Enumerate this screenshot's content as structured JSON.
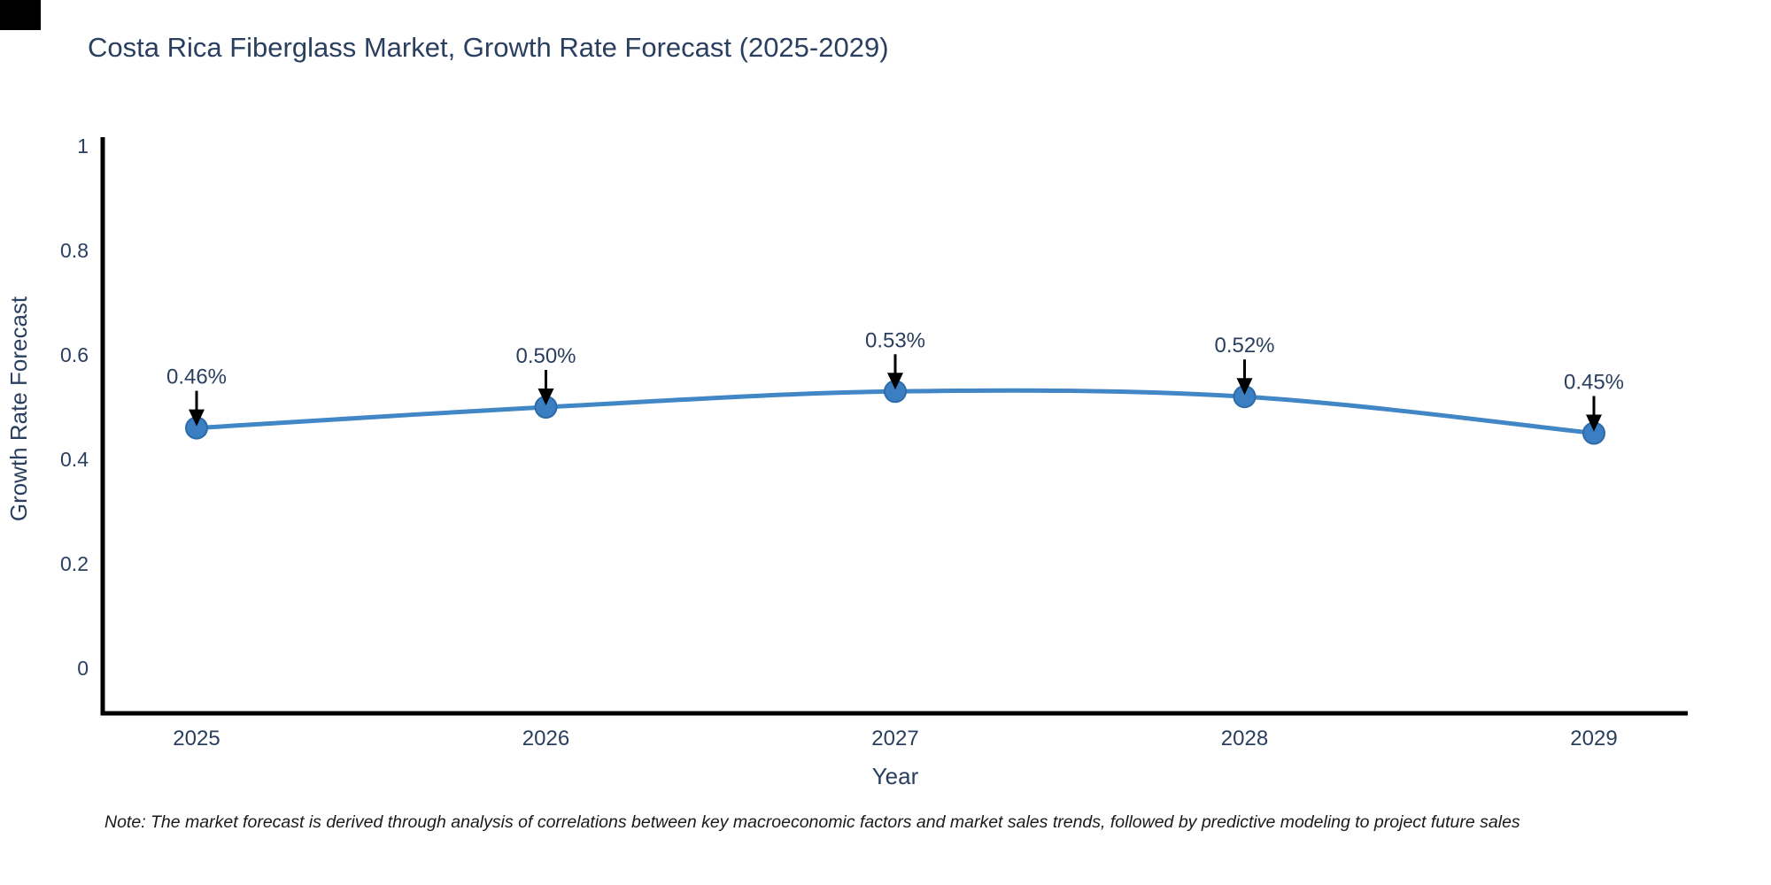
{
  "chart_data": {
    "type": "line",
    "title": "Costa Rica Fiberglass Market, Growth Rate Forecast (2025-2029)",
    "categories": [
      "2025",
      "2026",
      "2027",
      "2028",
      "2029"
    ],
    "values": [
      0.46,
      0.5,
      0.53,
      0.52,
      0.45
    ],
    "point_labels": [
      "0.46%",
      "0.50%",
      "0.53%",
      "0.52%",
      "0.45%"
    ],
    "xlabel": "Year",
    "ylabel": "Growth Rate Forecast",
    "ylim": [
      0,
      1
    ],
    "yticks": [
      0,
      0.2,
      0.4,
      0.6,
      0.8,
      1
    ],
    "ytick_labels": [
      "0",
      "0.2",
      "0.4",
      "0.6",
      "0.8",
      "1"
    ],
    "grid": false,
    "legend_position": "none",
    "line_shape": "spline",
    "markers": true,
    "colors": {
      "line": "#4186c5",
      "marker_fill": "#3b7ec2",
      "marker_edge": "#2e6ca8",
      "axis": "#000000",
      "tick_text": "#2a3f5f",
      "annotation_text": "#2a3f5f",
      "annotation_arrow": "#000000",
      "title_text": "#2a3f5f"
    }
  },
  "footnote": {
    "text": "Note: The market forecast is derived through analysis of correlations between key macroeconomic factors and market sales trends, followed by predictive modeling to project future sales"
  }
}
